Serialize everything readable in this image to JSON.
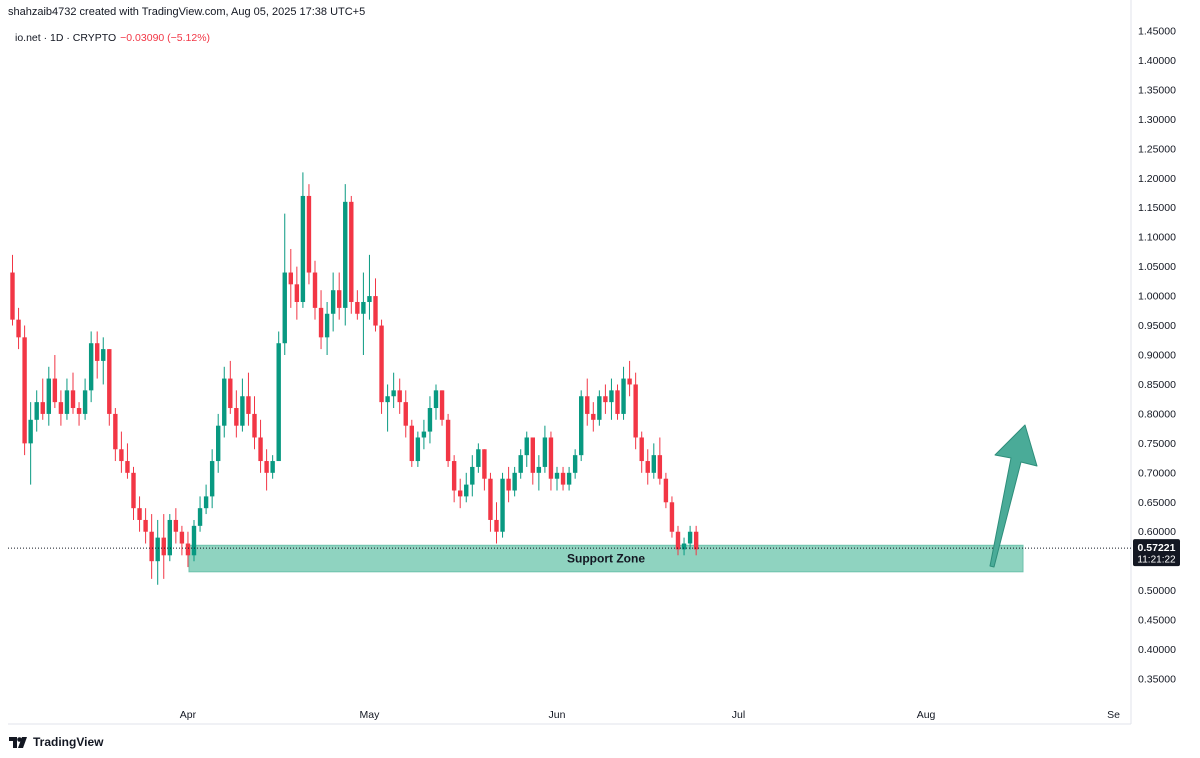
{
  "header": {
    "credit": "shahzaib4732 created with TradingView.com, Aug 05, 2025 17:38 UTC+5",
    "symbol": "io.net · 1D · CRYPTO",
    "change": "−0.03090 (−5.12%)"
  },
  "footer": {
    "logo_text": "TradingView",
    "logo_icon": "tradingview-logo-icon"
  },
  "colors": {
    "up": "#089981",
    "down": "#f23645",
    "zone": "#8fd3c0",
    "arrow": "#4aab98",
    "price_label": "#131722"
  },
  "chart_data": {
    "type": "candlestick",
    "y_ticks": [
      "1.45000",
      "1.40000",
      "1.35000",
      "1.30000",
      "1.25000",
      "1.20000",
      "1.15000",
      "1.10000",
      "1.05000",
      "1.00000",
      "0.95000",
      "0.90000",
      "0.85000",
      "0.80000",
      "0.75000",
      "0.70000",
      "0.65000",
      "0.60000",
      "0.50000",
      "0.45000",
      "0.40000",
      "0.35000"
    ],
    "ylim": [
      0.3,
      1.46
    ],
    "x_labels": [
      "Apr",
      "May",
      "Jun",
      "Jul",
      "Aug",
      "Se"
    ],
    "last_price": "0.57221",
    "countdown": "11:21:22",
    "annotation": "Support Zone",
    "support_zone": [
      0.532,
      0.577
    ],
    "arrow": "up",
    "start_date": "2025-03-03",
    "candles": [
      [
        1.04,
        1.07,
        0.95,
        0.96
      ],
      [
        0.96,
        0.98,
        0.91,
        0.93
      ],
      [
        0.93,
        0.95,
        0.73,
        0.75
      ],
      [
        0.75,
        0.82,
        0.68,
        0.79
      ],
      [
        0.79,
        0.84,
        0.77,
        0.82
      ],
      [
        0.82,
        0.86,
        0.79,
        0.8
      ],
      [
        0.8,
        0.88,
        0.78,
        0.86
      ],
      [
        0.86,
        0.9,
        0.81,
        0.82
      ],
      [
        0.82,
        0.84,
        0.78,
        0.8
      ],
      [
        0.8,
        0.86,
        0.79,
        0.84
      ],
      [
        0.84,
        0.87,
        0.8,
        0.81
      ],
      [
        0.81,
        0.82,
        0.78,
        0.8
      ],
      [
        0.8,
        0.86,
        0.79,
        0.84
      ],
      [
        0.84,
        0.94,
        0.82,
        0.92
      ],
      [
        0.92,
        0.94,
        0.86,
        0.89
      ],
      [
        0.89,
        0.93,
        0.85,
        0.91
      ],
      [
        0.91,
        0.91,
        0.78,
        0.8
      ],
      [
        0.8,
        0.81,
        0.72,
        0.74
      ],
      [
        0.74,
        0.77,
        0.7,
        0.72
      ],
      [
        0.72,
        0.75,
        0.69,
        0.7
      ],
      [
        0.7,
        0.71,
        0.62,
        0.64
      ],
      [
        0.64,
        0.66,
        0.6,
        0.62
      ],
      [
        0.62,
        0.64,
        0.58,
        0.6
      ],
      [
        0.6,
        0.63,
        0.52,
        0.55
      ],
      [
        0.55,
        0.62,
        0.51,
        0.59
      ],
      [
        0.59,
        0.63,
        0.52,
        0.56
      ],
      [
        0.56,
        0.63,
        0.55,
        0.62
      ],
      [
        0.62,
        0.64,
        0.58,
        0.6
      ],
      [
        0.6,
        0.61,
        0.56,
        0.58
      ],
      [
        0.58,
        0.6,
        0.54,
        0.56
      ],
      [
        0.56,
        0.62,
        0.55,
        0.61
      ],
      [
        0.61,
        0.66,
        0.6,
        0.64
      ],
      [
        0.64,
        0.68,
        0.63,
        0.66
      ],
      [
        0.66,
        0.74,
        0.64,
        0.72
      ],
      [
        0.72,
        0.8,
        0.7,
        0.78
      ],
      [
        0.78,
        0.88,
        0.76,
        0.86
      ],
      [
        0.86,
        0.89,
        0.8,
        0.81
      ],
      [
        0.81,
        0.84,
        0.76,
        0.78
      ],
      [
        0.78,
        0.86,
        0.77,
        0.83
      ],
      [
        0.83,
        0.87,
        0.78,
        0.8
      ],
      [
        0.8,
        0.83,
        0.74,
        0.76
      ],
      [
        0.76,
        0.79,
        0.7,
        0.72
      ],
      [
        0.72,
        0.74,
        0.67,
        0.7
      ],
      [
        0.7,
        0.73,
        0.69,
        0.72
      ],
      [
        0.72,
        0.94,
        0.72,
        0.92
      ],
      [
        0.92,
        1.14,
        0.9,
        1.04
      ],
      [
        1.04,
        1.08,
        0.98,
        1.02
      ],
      [
        1.02,
        1.05,
        0.96,
        0.99
      ],
      [
        0.99,
        1.21,
        0.98,
        1.17
      ],
      [
        1.17,
        1.19,
        1.02,
        1.04
      ],
      [
        1.04,
        1.06,
        0.96,
        0.98
      ],
      [
        0.98,
        1.01,
        0.91,
        0.93
      ],
      [
        0.93,
        0.99,
        0.9,
        0.97
      ],
      [
        0.97,
        1.04,
        0.94,
        1.01
      ],
      [
        1.01,
        1.04,
        0.96,
        0.98
      ],
      [
        0.98,
        1.19,
        0.95,
        1.16
      ],
      [
        1.16,
        1.17,
        0.97,
        0.99
      ],
      [
        0.99,
        1.01,
        0.96,
        0.97
      ],
      [
        0.97,
        1.04,
        0.9,
        0.99
      ],
      [
        0.99,
        1.07,
        0.96,
        1.0
      ],
      [
        1.0,
        1.03,
        0.94,
        0.95
      ],
      [
        0.95,
        0.96,
        0.8,
        0.82
      ],
      [
        0.82,
        0.85,
        0.77,
        0.83
      ],
      [
        0.83,
        0.87,
        0.81,
        0.84
      ],
      [
        0.84,
        0.86,
        0.8,
        0.82
      ],
      [
        0.82,
        0.84,
        0.76,
        0.78
      ],
      [
        0.78,
        0.79,
        0.71,
        0.72
      ],
      [
        0.72,
        0.77,
        0.71,
        0.76
      ],
      [
        0.76,
        0.79,
        0.74,
        0.77
      ],
      [
        0.77,
        0.83,
        0.75,
        0.81
      ],
      [
        0.81,
        0.85,
        0.79,
        0.84
      ],
      [
        0.84,
        0.84,
        0.78,
        0.79
      ],
      [
        0.79,
        0.8,
        0.71,
        0.72
      ],
      [
        0.72,
        0.73,
        0.65,
        0.67
      ],
      [
        0.67,
        0.69,
        0.64,
        0.66
      ],
      [
        0.66,
        0.7,
        0.65,
        0.68
      ],
      [
        0.68,
        0.73,
        0.66,
        0.71
      ],
      [
        0.71,
        0.75,
        0.7,
        0.74
      ],
      [
        0.74,
        0.74,
        0.67,
        0.69
      ],
      [
        0.69,
        0.7,
        0.6,
        0.62
      ],
      [
        0.62,
        0.65,
        0.58,
        0.6
      ],
      [
        0.6,
        0.7,
        0.59,
        0.69
      ],
      [
        0.69,
        0.71,
        0.65,
        0.67
      ],
      [
        0.67,
        0.71,
        0.66,
        0.7
      ],
      [
        0.7,
        0.74,
        0.69,
        0.73
      ],
      [
        0.73,
        0.77,
        0.71,
        0.76
      ],
      [
        0.76,
        0.76,
        0.68,
        0.7
      ],
      [
        0.7,
        0.73,
        0.67,
        0.71
      ],
      [
        0.71,
        0.78,
        0.7,
        0.76
      ],
      [
        0.76,
        0.77,
        0.67,
        0.69
      ],
      [
        0.69,
        0.71,
        0.67,
        0.7
      ],
      [
        0.7,
        0.71,
        0.67,
        0.68
      ],
      [
        0.68,
        0.71,
        0.67,
        0.7
      ],
      [
        0.7,
        0.74,
        0.69,
        0.73
      ],
      [
        0.73,
        0.84,
        0.72,
        0.83
      ],
      [
        0.83,
        0.86,
        0.78,
        0.8
      ],
      [
        0.8,
        0.82,
        0.77,
        0.79
      ],
      [
        0.79,
        0.84,
        0.78,
        0.83
      ],
      [
        0.83,
        0.85,
        0.8,
        0.82
      ],
      [
        0.82,
        0.86,
        0.79,
        0.84
      ],
      [
        0.84,
        0.85,
        0.79,
        0.8
      ],
      [
        0.8,
        0.88,
        0.79,
        0.86
      ],
      [
        0.86,
        0.89,
        0.83,
        0.85
      ],
      [
        0.85,
        0.87,
        0.74,
        0.76
      ],
      [
        0.76,
        0.77,
        0.7,
        0.72
      ],
      [
        0.72,
        0.74,
        0.68,
        0.7
      ],
      [
        0.7,
        0.75,
        0.69,
        0.73
      ],
      [
        0.73,
        0.76,
        0.68,
        0.69
      ],
      [
        0.69,
        0.7,
        0.64,
        0.65
      ],
      [
        0.65,
        0.66,
        0.59,
        0.6
      ],
      [
        0.6,
        0.61,
        0.56,
        0.57
      ],
      [
        0.57,
        0.59,
        0.56,
        0.58
      ],
      [
        0.58,
        0.61,
        0.57,
        0.6
      ],
      [
        0.6,
        0.61,
        0.56,
        0.57
      ]
    ]
  }
}
